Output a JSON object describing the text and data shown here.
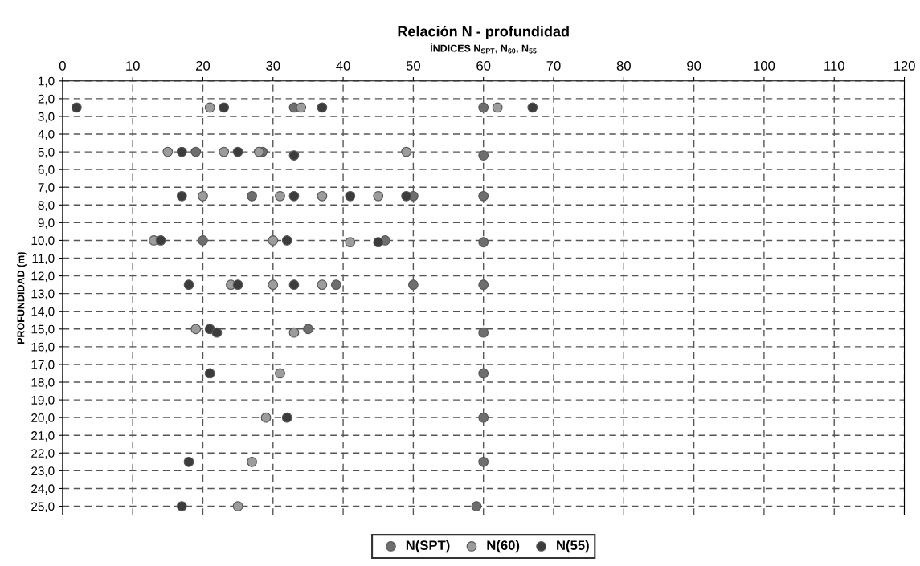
{
  "chart_data": {
    "type": "scatter",
    "title": "Relación N - profundidad",
    "xlabel": "ÍNDICES N$_{SPT}$, N$_{60}$, N$_{55}$",
    "ylabel": "PROFUNDIDAD (m)",
    "xlim": [
      0,
      120
    ],
    "xticks": [
      0,
      10,
      20,
      30,
      40,
      50,
      60,
      70,
      80,
      90,
      100,
      110,
      120
    ],
    "ylim": [
      25.5,
      1.0
    ],
    "yticks": [
      {
        "value": 1,
        "label": "1,0"
      },
      {
        "value": 2,
        "label": "2,0"
      },
      {
        "value": 3,
        "label": "3,0"
      },
      {
        "value": 4,
        "label": "4,0"
      },
      {
        "value": 5,
        "label": "5,0"
      },
      {
        "value": 6,
        "label": "6,0"
      },
      {
        "value": 7,
        "label": "7,0"
      },
      {
        "value": 8,
        "label": "8,0"
      },
      {
        "value": 9,
        "label": "9,0"
      },
      {
        "value": 10,
        "label": "10,0"
      },
      {
        "value": 11,
        "label": "11,0"
      },
      {
        "value": 12,
        "label": "12,0"
      },
      {
        "value": 13,
        "label": "13,0"
      },
      {
        "value": 14,
        "label": "14,0"
      },
      {
        "value": 15,
        "label": "15,0"
      },
      {
        "value": 16,
        "label": "16,0"
      },
      {
        "value": 17,
        "label": "17,0"
      },
      {
        "value": 18,
        "label": "18,0"
      },
      {
        "value": 19,
        "label": "19,0"
      },
      {
        "value": 20,
        "label": "20,0"
      },
      {
        "value": 21,
        "label": "21,0"
      },
      {
        "value": 22,
        "label": "22,0"
      },
      {
        "value": 23,
        "label": "23,0"
      },
      {
        "value": 24,
        "label": "24,0"
      },
      {
        "value": 25,
        "label": "25,0"
      }
    ],
    "grid": true,
    "line_style": "dashed",
    "legend": "bottom",
    "marker": "circle",
    "series": [
      {
        "name": "N(SPT)",
        "color": "#6e6e6e",
        "x": [
          33,
          60,
          19,
          28.5,
          60,
          27,
          50,
          60,
          20,
          46,
          60,
          39,
          50,
          60,
          35,
          60,
          60,
          60,
          60,
          59
        ],
        "values": [
          2.5,
          2.5,
          5.0,
          5.0,
          5.2,
          7.5,
          7.5,
          7.5,
          10.0,
          10.0,
          10.1,
          12.5,
          12.5,
          12.5,
          15.0,
          15.2,
          17.5,
          20.0,
          22.5,
          25.0
        ]
      },
      {
        "name": "N(60)",
        "color": "#9c9c9c",
        "x": [
          21,
          34,
          62,
          15,
          23,
          28,
          49,
          20,
          31,
          37,
          45,
          13,
          30,
          41,
          24,
          30,
          37,
          19,
          33,
          31,
          29,
          27,
          25
        ],
        "values": [
          2.5,
          2.5,
          2.5,
          5.0,
          5.0,
          5.0,
          5.0,
          7.5,
          7.5,
          7.5,
          7.5,
          10.0,
          10.0,
          10.1,
          12.5,
          12.5,
          12.5,
          15.0,
          15.2,
          17.5,
          20.0,
          22.5,
          25.0
        ]
      },
      {
        "name": "N(55)",
        "color": "#3c3c3c",
        "x": [
          2,
          23,
          37,
          67,
          17,
          25,
          33,
          17,
          33,
          41,
          49,
          14,
          32,
          45,
          18,
          25,
          33,
          21,
          22,
          21,
          32,
          18,
          17
        ],
        "values": [
          2.5,
          2.5,
          2.5,
          2.5,
          5.0,
          5.0,
          5.2,
          7.5,
          7.5,
          7.5,
          7.5,
          10.0,
          10.0,
          10.1,
          12.5,
          12.5,
          12.5,
          15.0,
          15.2,
          17.5,
          20.0,
          22.5,
          25.0
        ]
      }
    ]
  }
}
